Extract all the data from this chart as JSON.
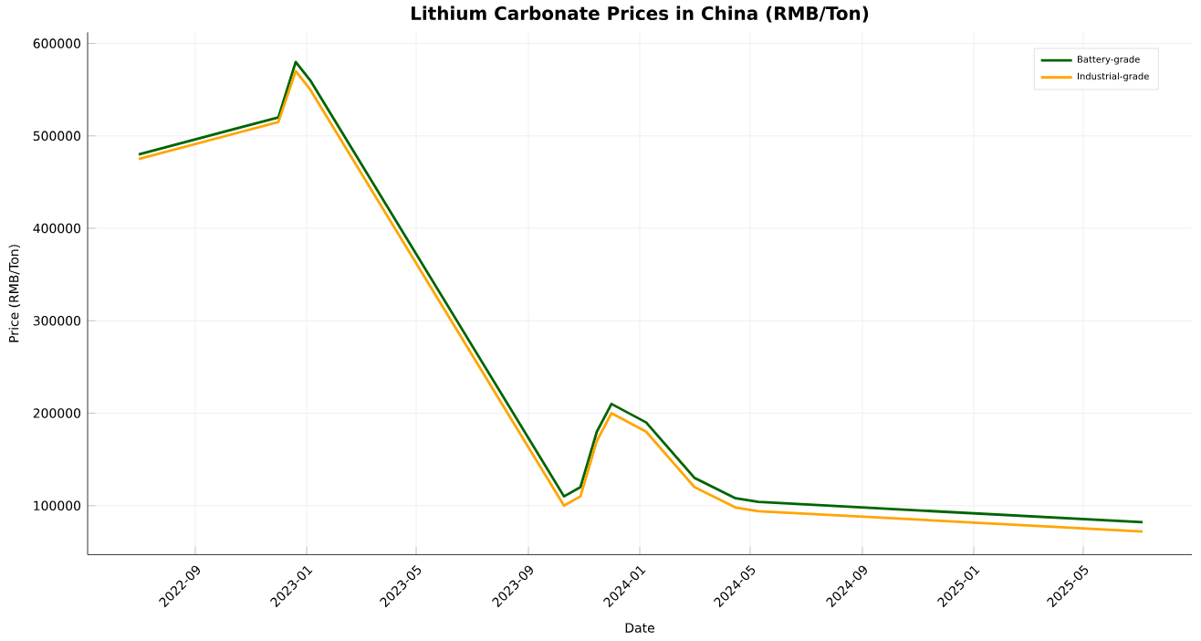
{
  "chart_data": {
    "type": "line",
    "title": "Lithium Carbonate Prices in China (RMB/Ton)",
    "xlabel": "Date",
    "ylabel": "Price (RMB/Ton)",
    "x": [
      "2022-07-01",
      "2022-12-01",
      "2022-12-20",
      "2023-01-05",
      "2023-10-10",
      "2023-10-28",
      "2023-11-15",
      "2023-12-01",
      "2024-01-08",
      "2024-03-01",
      "2024-04-15",
      "2024-05-10",
      "2025-07-05"
    ],
    "series": [
      {
        "name": "Battery-grade",
        "color": "#006400",
        "values": [
          480000,
          520000,
          580000,
          560000,
          110000,
          120000,
          180000,
          210000,
          190000,
          130000,
          108000,
          104000,
          82000
        ]
      },
      {
        "name": "Industrial-grade",
        "color": "#ffa500",
        "values": [
          475000,
          515000,
          570000,
          550000,
          100000,
          110000,
          170000,
          200000,
          180000,
          120000,
          98000,
          94000,
          72000
        ]
      }
    ],
    "xlim": [
      "2022-05-06",
      "2025-08-28"
    ],
    "ylim": [
      47000,
      612000
    ],
    "xticks": [
      {
        "value": "2022-09-01",
        "label": "2022-09"
      },
      {
        "value": "2023-01-01",
        "label": "2023-01"
      },
      {
        "value": "2023-05-01",
        "label": "2023-05"
      },
      {
        "value": "2023-09-01",
        "label": "2023-09"
      },
      {
        "value": "2024-01-01",
        "label": "2024-01"
      },
      {
        "value": "2024-05-01",
        "label": "2024-05"
      },
      {
        "value": "2024-09-01",
        "label": "2024-09"
      },
      {
        "value": "2025-01-01",
        "label": "2025-01"
      },
      {
        "value": "2025-05-01",
        "label": "2025-05"
      }
    ],
    "yticks": [
      100000,
      200000,
      300000,
      400000,
      500000,
      600000
    ],
    "grid": true,
    "legend": "top right",
    "line_style": "solid"
  }
}
